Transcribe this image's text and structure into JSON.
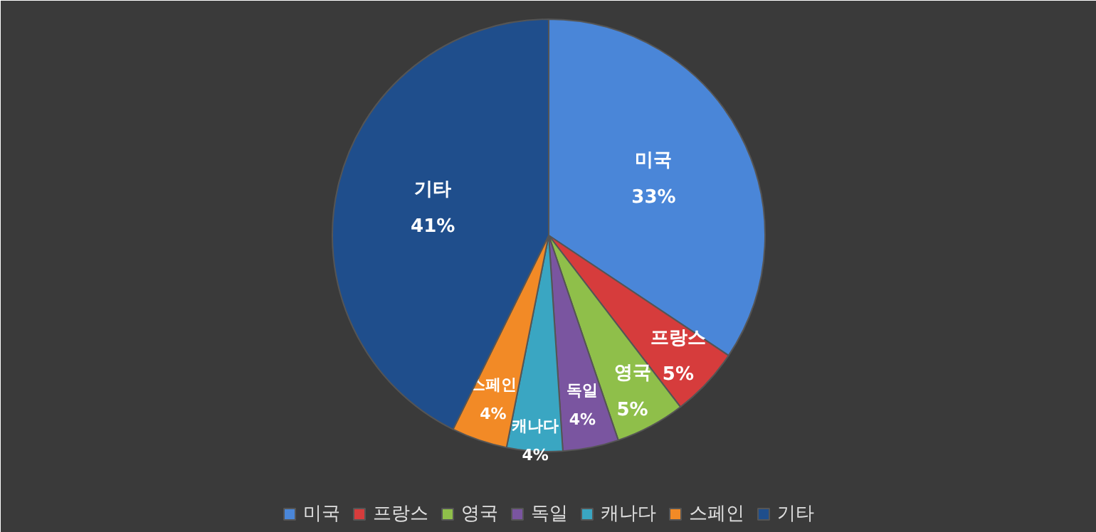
{
  "chart_data": {
    "type": "pie",
    "categories": [
      "미국",
      "프랑스",
      "영국",
      "독일",
      "캐나다",
      "스페인",
      "기타"
    ],
    "values": [
      33,
      5,
      5,
      4,
      4,
      4,
      41
    ],
    "colors": [
      "#4a86d8",
      "#d63c3c",
      "#8fbf4a",
      "#7a55a0",
      "#3aa6c2",
      "#f28a26",
      "#1f4e8c"
    ],
    "value_labels": [
      "33%",
      "5%",
      "5%",
      "4%",
      "4%",
      "4%",
      "41%"
    ],
    "legend": "bottom"
  }
}
